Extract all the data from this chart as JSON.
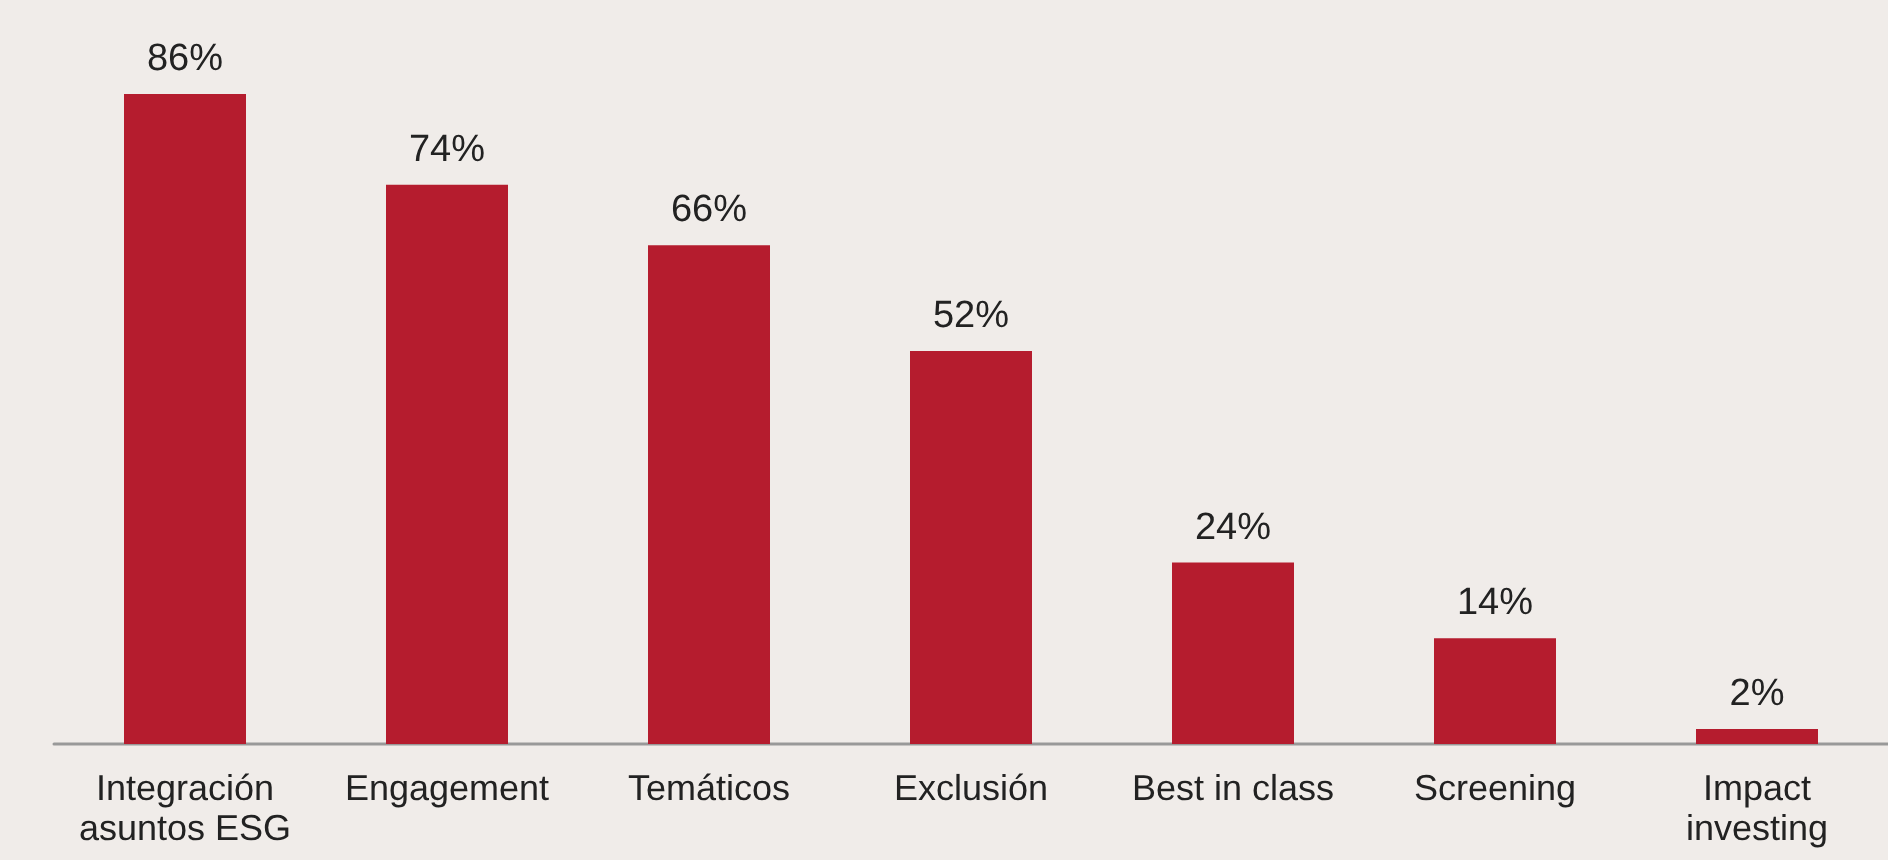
{
  "chart_data": {
    "type": "bar",
    "categories": [
      "Integración\nasuntos ESG",
      "Engagement",
      "Temáticos",
      "Exclusión",
      "Best in class",
      "Screening",
      "Impact\ninvesting"
    ],
    "values": [
      86,
      74,
      66,
      52,
      24,
      14,
      2
    ],
    "value_labels": [
      "86%",
      "74%",
      "66%",
      "52%",
      "24%",
      "14%",
      "2%"
    ],
    "color": "#b51c2e"
  }
}
